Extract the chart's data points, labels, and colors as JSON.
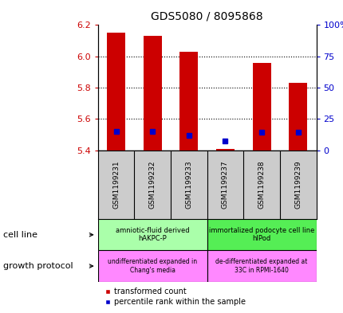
{
  "title": "GDS5080 / 8095868",
  "samples": [
    "GSM1199231",
    "GSM1199232",
    "GSM1199233",
    "GSM1199237",
    "GSM1199238",
    "GSM1199239"
  ],
  "bar_bottoms": [
    5.4,
    5.4,
    5.4,
    5.4,
    5.4,
    5.4
  ],
  "bar_tops": [
    6.15,
    6.13,
    6.03,
    5.41,
    5.96,
    5.83
  ],
  "percentile_values": [
    5.52,
    5.52,
    5.495,
    5.46,
    5.515,
    5.515
  ],
  "ylim": [
    5.4,
    6.2
  ],
  "yticks_left": [
    5.4,
    5.6,
    5.8,
    6.0,
    6.2
  ],
  "yticks_right": [
    0,
    25,
    50,
    75,
    100
  ],
  "bar_color": "#cc0000",
  "percentile_color": "#0000cc",
  "cell_line_groups": [
    {
      "label": "amniotic-fluid derived\nhAKPC-P",
      "color": "#aaffaa",
      "start": 0,
      "end": 3
    },
    {
      "label": "immortalized podocyte cell line\nhIPod",
      "color": "#55ee55",
      "start": 3,
      "end": 6
    }
  ],
  "growth_protocol_groups": [
    {
      "label": "undifferentiated expanded in\nChang's media",
      "color": "#ff88ff",
      "start": 0,
      "end": 3
    },
    {
      "label": "de-differentiated expanded at\n33C in RPMI-1640",
      "color": "#ff88ff",
      "start": 3,
      "end": 6
    }
  ],
  "cell_line_label": "cell line",
  "growth_protocol_label": "growth protocol",
  "legend_red_label": "transformed count",
  "legend_blue_label": "percentile rank within the sample",
  "ylabel_left_color": "#cc0000",
  "ylabel_right_color": "#0000cc",
  "sample_bg_color": "#cccccc",
  "grid_dotted_color": "#000000"
}
